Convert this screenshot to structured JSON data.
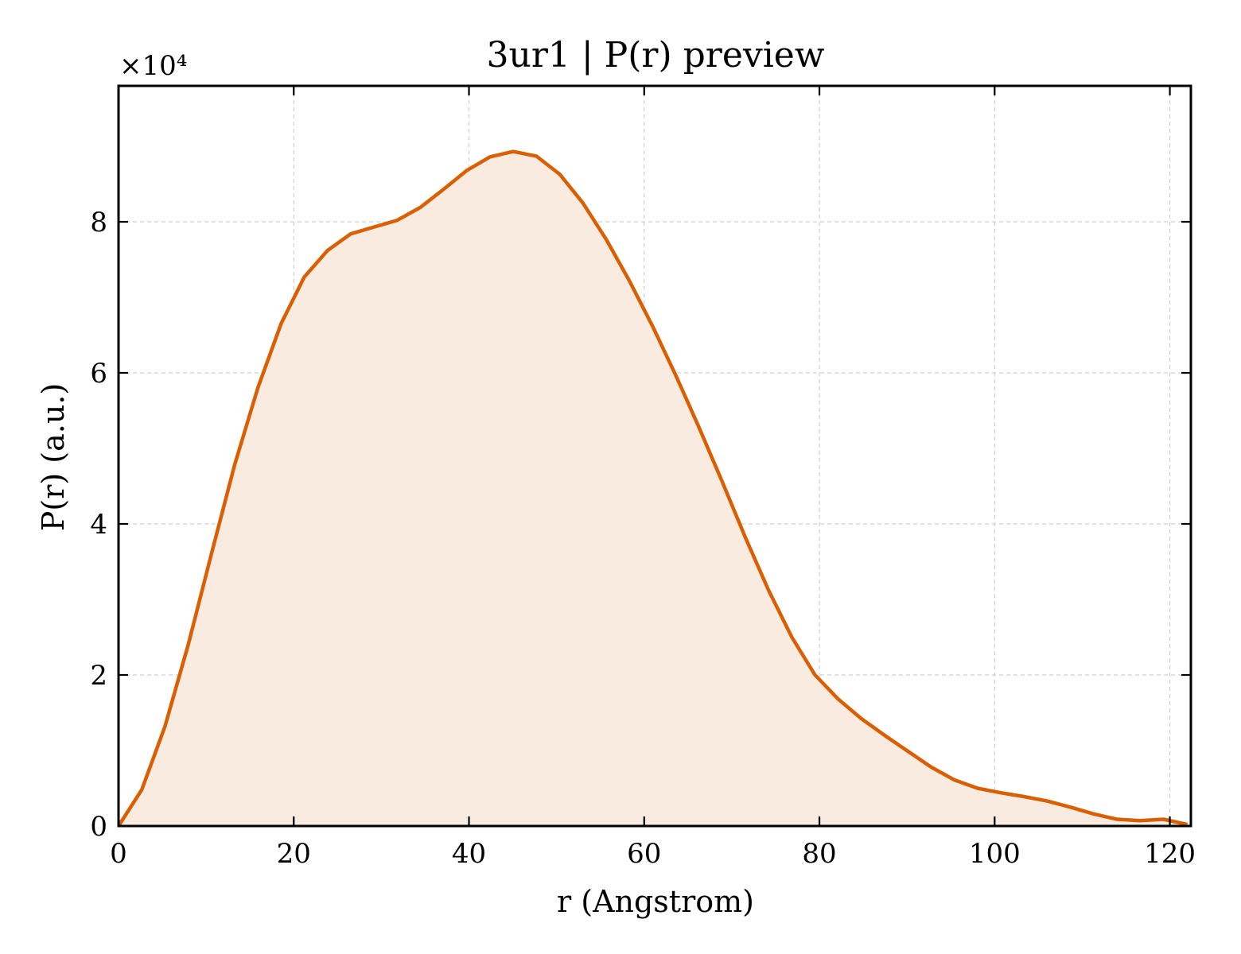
{
  "chart_data": {
    "type": "area",
    "title": "3ur1 | P(r) preview",
    "xlabel": "r (Angstrom)",
    "ylabel": "P(r) (a.u.)",
    "y_offset_text": "×10⁴",
    "y_multiplier": 10000,
    "xlim": [
      0,
      122.4
    ],
    "ylim": [
      0,
      98000
    ],
    "x_ticks": [
      0,
      20,
      40,
      60,
      80,
      100,
      120
    ],
    "x_tick_labels": [
      "0",
      "20",
      "40",
      "60",
      "80",
      "100",
      "120"
    ],
    "y_ticks": [
      0,
      20000,
      40000,
      60000,
      80000
    ],
    "y_tick_labels": [
      "0",
      "2",
      "4",
      "6",
      "8"
    ],
    "grid": true,
    "line_color": "#d95f02",
    "fill_color": "#f9ebe0",
    "series": [
      {
        "x": [
          0,
          2.65,
          5.3,
          7.95,
          10.6,
          13.25,
          15.9,
          18.55,
          21.2,
          23.85,
          26.5,
          29.15,
          31.8,
          34.45,
          37.1,
          39.75,
          42.4,
          45.05,
          47.7,
          50.35,
          53.0,
          55.65,
          58.3,
          60.95,
          63.6,
          66.25,
          68.9,
          71.55,
          74.2,
          76.85,
          79.5,
          82.15,
          84.8,
          87.45,
          90.1,
          92.75,
          95.4,
          98.05,
          100.7,
          103.35,
          106.0,
          108.65,
          111.3,
          113.95,
          116.6,
          119.25,
          122.0
        ],
        "y": [
          0,
          4800,
          13200,
          24000,
          36000,
          47800,
          58000,
          66500,
          72700,
          76200,
          78400,
          79300,
          80200,
          81900,
          84300,
          86800,
          88600,
          89300,
          88700,
          86300,
          82500,
          77700,
          72200,
          66200,
          59700,
          52800,
          45600,
          38200,
          31200,
          25000,
          20000,
          16800,
          14200,
          12000,
          9900,
          7800,
          6100,
          5000,
          4400,
          3900,
          3300,
          2500,
          1600,
          900,
          700,
          900,
          200
        ]
      }
    ]
  }
}
